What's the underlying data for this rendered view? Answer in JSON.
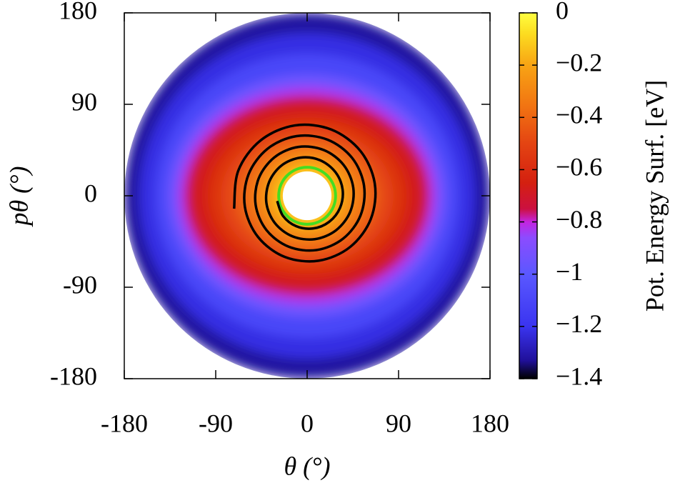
{
  "chart_data": {
    "type": "phase-map",
    "x_label": "θ (°)",
    "y_label": "pθ (°)",
    "colorbar_label": "Pot. Energy Surf. [eV]",
    "xlim": [
      -180,
      180
    ],
    "ylim": [
      -180,
      180
    ],
    "xticks": [
      -180,
      -90,
      0,
      90,
      180
    ],
    "yticks": [
      -180,
      -90,
      0,
      90,
      180
    ],
    "clim": [
      -1.4,
      0
    ],
    "cticks": [
      0,
      {
        "value": -0.2,
        "label": "−0.2"
      },
      {
        "value": -0.4,
        "label": "−0.4"
      },
      {
        "value": -0.6,
        "label": "−0.6"
      },
      {
        "value": -0.8,
        "label": "−0.8"
      },
      {
        "value": -1,
        "label": "−1"
      },
      {
        "value": -1.2,
        "label": "−1.2"
      },
      {
        "value": -1.4,
        "label": "−1.4"
      }
    ],
    "colormap": [
      {
        "value": -1.4,
        "color": "#000000"
      },
      {
        "value": -1.33,
        "color": "#20109a"
      },
      {
        "value": -1.2,
        "color": "#3a34f0"
      },
      {
        "value": -1.0,
        "color": "#5a58ff"
      },
      {
        "value": -0.86,
        "color": "#8c4cff"
      },
      {
        "value": -0.8,
        "color": "#c424e0"
      },
      {
        "value": -0.75,
        "color": "#cc1040"
      },
      {
        "value": -0.65,
        "color": "#d42010"
      },
      {
        "value": -0.5,
        "color": "#e44412"
      },
      {
        "value": -0.35,
        "color": "#f27612"
      },
      {
        "value": -0.2,
        "color": "#f8a414"
      },
      {
        "value": -0.08,
        "color": "#fcdc20"
      },
      {
        "value": 0,
        "color": "#ffff40"
      }
    ],
    "surface": {
      "rx": [
        180,
        165,
        150,
        138,
        128,
        120,
        110,
        98,
        85,
        72,
        60,
        48,
        38,
        30
      ],
      "ry": [
        180,
        160,
        140,
        120,
        108,
        98,
        88,
        78,
        68,
        58,
        50,
        42,
        34,
        28
      ],
      "values": [
        -1.32,
        -1.22,
        -1.1,
        -0.95,
        -0.83,
        -0.74,
        -0.66,
        -0.58,
        -0.5,
        -0.42,
        -0.35,
        -0.27,
        -0.2,
        -0.12
      ],
      "hole_radius": 24
    },
    "orbit": {
      "radius": 28,
      "color": "#44dd22"
    },
    "trajectory": {
      "color": "#000000",
      "x": [
        -71.9,
        -67.8,
        -45.8,
        -12.2,
        23.7,
        52.5,
        66.6,
        62.7,
        42.3,
        11.3,
        -21.9,
        -48.3,
        -61.3,
        -57.7,
        -38.9,
        -10.4,
        20.1,
        44.3,
        56.0,
        52.6,
        35.4,
        9.4,
        -18.2,
        -40.1,
        -50.7,
        -47.6,
        -31.9,
        -8.5,
        16.4,
        36.0,
        45.4,
        42.5,
        28.5,
        7.6,
        -14.5,
        -31.9,
        -40.1,
        -37.4,
        -25.1,
        -6.6,
        12.7,
        27.8,
        34.9,
        32.4,
        21.6,
        5.7,
        -10.9,
        -23.7,
        -29.5
      ],
      "y": [
        -12.7,
        24.7,
        54.5,
        69.2,
        65.2,
        44.0,
        11.8,
        -22.8,
        -50.4,
        -63.9,
        -60.2,
        -40.6,
        -10.8,
        21.0,
        46.3,
        58.7,
        55.2,
        37.2,
        9.9,
        -19.2,
        -42.2,
        -53.4,
        -50.1,
        -33.7,
        -9.0,
        17.3,
        38.1,
        48.1,
        45.0,
        30.2,
        8.0,
        -15.5,
        -33.9,
        -42.7,
        -39.9,
        -26.7,
        -7.1,
        13.6,
        29.9,
        37.5,
        35.0,
        23.3,
        6.2,
        -11.8,
        -25.7,
        -32.2,
        -29.9,
        -19.9,
        -5.2
      ]
    }
  }
}
